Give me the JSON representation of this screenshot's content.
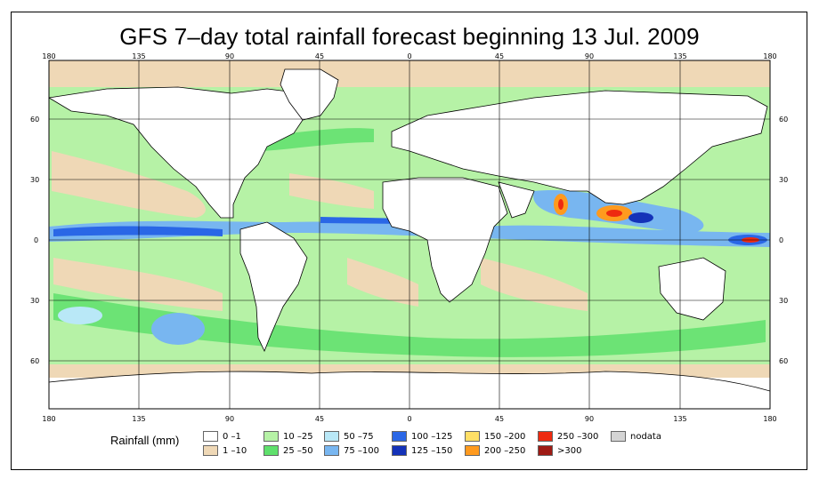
{
  "title": "GFS 7–day total rainfall forecast beginning 13 Jul. 2009",
  "axes": {
    "lon_labels": [
      "180",
      "135",
      "90",
      "45",
      "0",
      "45",
      "90",
      "135",
      "180"
    ],
    "lat_labels": [
      "60",
      "30",
      "0",
      "30",
      "60"
    ]
  },
  "legend": {
    "title": "Rainfall (mm)",
    "items": [
      {
        "label": "0 –1",
        "color": "#ffffff"
      },
      {
        "label": "1 –10",
        "color": "#efd8b6"
      },
      {
        "label": "10 –25",
        "color": "#b6f2a6"
      },
      {
        "label": "25 –50",
        "color": "#5fe06c"
      },
      {
        "label": "50 –75",
        "color": "#b9e8f7"
      },
      {
        "label": "75 –100",
        "color": "#78b6f0"
      },
      {
        "label": "100 –125",
        "color": "#2a67e6"
      },
      {
        "label": "125 –150",
        "color": "#1432b8"
      },
      {
        "label": "150 –200",
        "color": "#ffdf66"
      },
      {
        "label": "200 –250",
        "color": "#ff9a1e"
      },
      {
        "label": "250 –300",
        "color": "#ee2a10"
      },
      {
        "label": ">300",
        "color": "#9e1a14"
      },
      {
        "label": "nodata",
        "color": "#d4d4d4"
      }
    ]
  }
}
